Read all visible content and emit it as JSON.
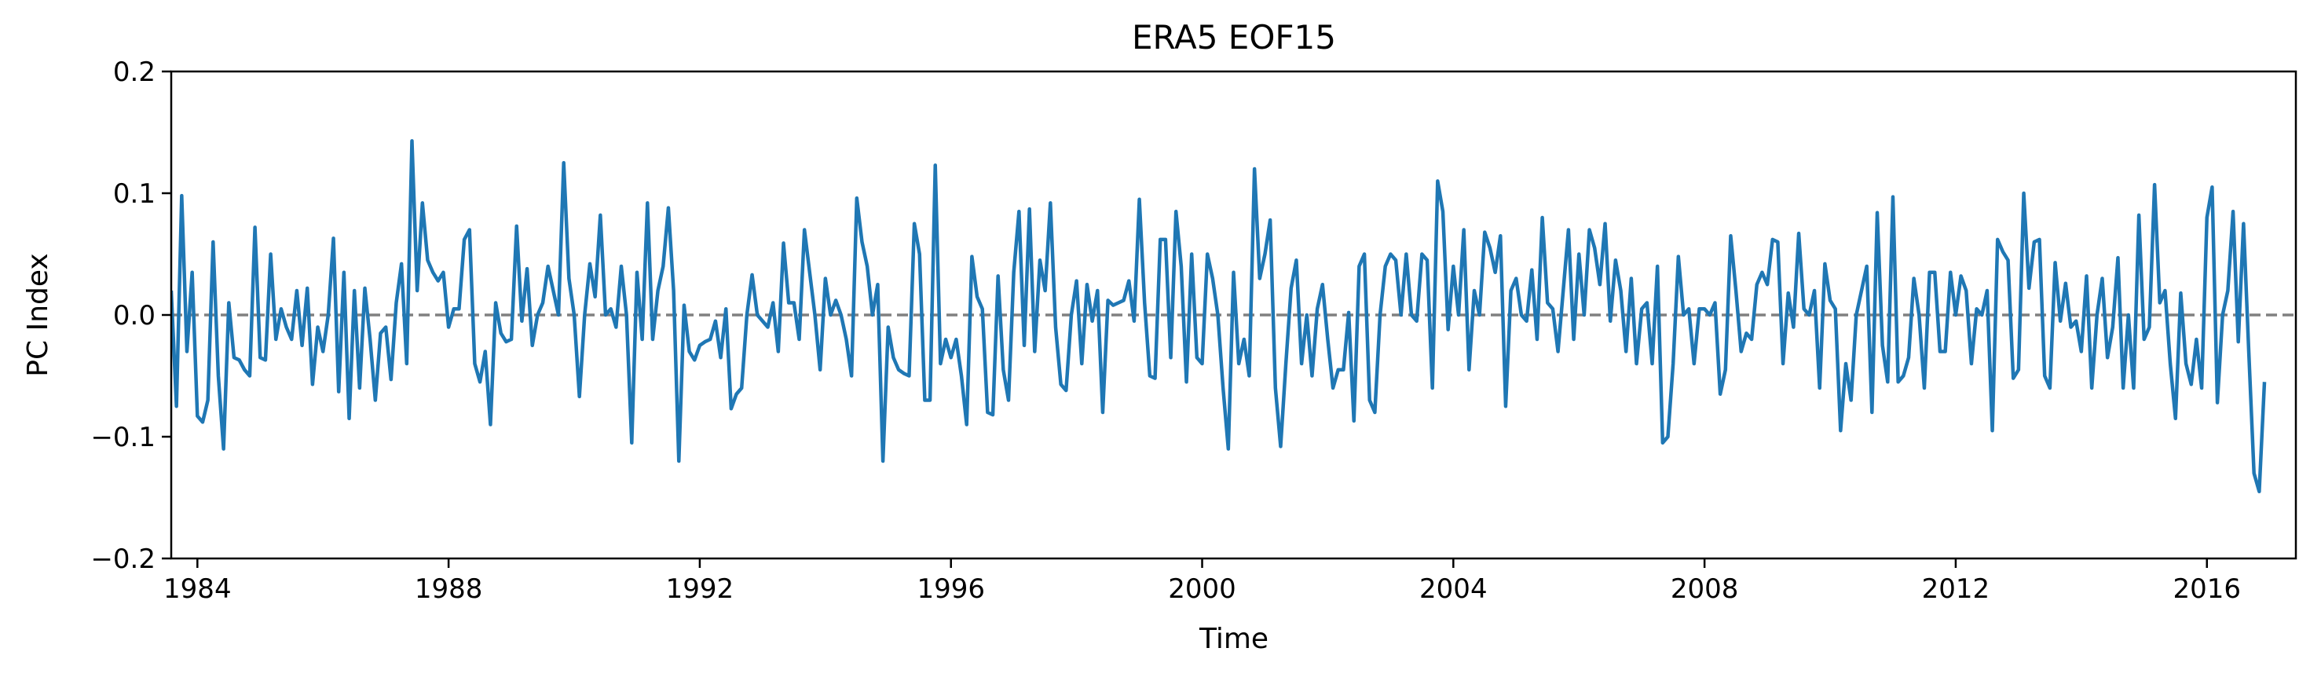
{
  "chart_data": {
    "type": "line",
    "title": "ERA5  EOF15",
    "xlabel": "Time",
    "ylabel": "PC Index",
    "xlim": [
      "1983-08",
      "2017-06"
    ],
    "ylim": [
      -0.2,
      0.2
    ],
    "x_ticks": [
      "1984",
      "1988",
      "1992",
      "1996",
      "2000",
      "2004",
      "2008",
      "2012",
      "2016"
    ],
    "y_ticks": [
      "0.2",
      "0.1",
      "0.0",
      "−0.1",
      "−0.2"
    ],
    "y_tick_values": [
      0.2,
      0.1,
      0.0,
      -0.1,
      -0.2
    ],
    "reference_line": {
      "y": 0.0,
      "style": "dashed",
      "color": "#808080"
    },
    "grid": false,
    "line_color": "#1f77b4",
    "series": [
      {
        "x_start": "1983-08",
        "frequency": "monthly",
        "values": [
          0.02,
          -0.075,
          0.098,
          -0.03,
          0.035,
          -0.083,
          -0.088,
          -0.07,
          0.06,
          -0.05,
          -0.11,
          0.01,
          -0.035,
          -0.037,
          -0.045,
          -0.05,
          0.072,
          -0.035,
          -0.037,
          0.05,
          -0.02,
          0.005,
          -0.01,
          -0.02,
          0.02,
          -0.025,
          0.022,
          -0.057,
          -0.01,
          -0.03,
          0.0,
          0.063,
          -0.063,
          0.035,
          -0.085,
          0.02,
          -0.06,
          0.022,
          -0.02,
          -0.07,
          -0.015,
          -0.01,
          -0.053,
          0.01,
          0.042,
          -0.04,
          0.143,
          0.02,
          0.092,
          0.045,
          0.035,
          0.028,
          0.035,
          -0.01,
          0.005,
          0.005,
          0.062,
          0.07,
          -0.04,
          -0.055,
          -0.03,
          -0.09,
          0.01,
          -0.015,
          -0.022,
          -0.02,
          0.073,
          -0.005,
          0.038,
          -0.025,
          0.0,
          0.01,
          0.04,
          0.02,
          0.0,
          0.125,
          0.03,
          0.0,
          -0.067,
          0.0,
          0.042,
          0.015,
          0.082,
          0.0,
          0.005,
          -0.01,
          0.04,
          0.0,
          -0.105,
          0.035,
          -0.02,
          0.092,
          -0.02,
          0.02,
          0.04,
          0.088,
          0.02,
          -0.12,
          0.008,
          -0.03,
          -0.037,
          -0.025,
          -0.022,
          -0.02,
          -0.005,
          -0.035,
          0.005,
          -0.077,
          -0.065,
          -0.06,
          0.0,
          0.033,
          0.0,
          -0.005,
          -0.01,
          0.01,
          -0.03,
          0.059,
          0.01,
          0.01,
          -0.02,
          0.07,
          0.035,
          0.0,
          -0.045,
          0.03,
          0.0,
          0.012,
          0.0,
          -0.02,
          -0.05,
          0.096,
          0.06,
          0.04,
          0.0,
          0.025,
          -0.12,
          -0.01,
          -0.035,
          -0.045,
          -0.048,
          -0.05,
          0.075,
          0.05,
          -0.07,
          -0.07,
          0.123,
          -0.04,
          -0.02,
          -0.035,
          -0.02,
          -0.05,
          -0.09,
          0.048,
          0.015,
          0.005,
          -0.08,
          -0.082,
          0.032,
          -0.045,
          -0.07,
          0.035,
          0.085,
          -0.025,
          0.087,
          -0.03,
          0.045,
          0.02,
          0.092,
          -0.01,
          -0.057,
          -0.062,
          0.0,
          0.028,
          -0.04,
          0.025,
          -0.005,
          0.02,
          -0.08,
          0.012,
          0.008,
          0.01,
          0.012,
          0.028,
          -0.005,
          0.095,
          0.01,
          -0.05,
          -0.052,
          0.062,
          0.062,
          -0.035,
          0.085,
          0.04,
          -0.055,
          0.05,
          -0.035,
          -0.04,
          0.05,
          0.03,
          0.0,
          -0.06,
          -0.11,
          0.035,
          -0.04,
          -0.02,
          -0.05,
          0.12,
          0.03,
          0.05,
          0.078,
          -0.06,
          -0.108,
          -0.04,
          0.022,
          0.045,
          -0.04,
          0.0,
          -0.05,
          0.005,
          0.025,
          -0.02,
          -0.06,
          -0.045,
          -0.045,
          0.002,
          -0.087,
          0.04,
          0.05,
          -0.07,
          -0.08,
          0.0,
          0.04,
          0.05,
          0.045,
          0.0,
          0.05,
          0.0,
          -0.005,
          0.05,
          0.045,
          -0.06,
          0.11,
          0.085,
          -0.012,
          0.04,
          0.0,
          0.07,
          -0.045,
          0.02,
          0.0,
          0.068,
          0.055,
          0.035,
          0.065,
          -0.075,
          0.02,
          0.03,
          0.0,
          -0.005,
          0.037,
          -0.02,
          0.08,
          0.01,
          0.005,
          -0.03,
          0.02,
          0.07,
          -0.02,
          0.05,
          0.0,
          0.07,
          0.055,
          0.025,
          0.075,
          -0.005,
          0.045,
          0.02,
          -0.03,
          0.03,
          -0.04,
          0.005,
          0.01,
          -0.04,
          0.04,
          -0.105,
          -0.1,
          -0.04,
          0.048,
          0.0,
          0.005,
          -0.04,
          0.005,
          0.005,
          0.0,
          0.01,
          -0.065,
          -0.045,
          0.065,
          0.02,
          -0.03,
          -0.015,
          -0.02,
          0.025,
          0.035,
          0.025,
          0.062,
          0.06,
          -0.04,
          0.018,
          -0.01,
          0.067,
          0.005,
          0.0,
          0.02,
          -0.06,
          0.042,
          0.012,
          0.005,
          -0.095,
          -0.04,
          -0.07,
          0.0,
          0.02,
          0.04,
          -0.08,
          0.084,
          -0.025,
          -0.055,
          0.097,
          -0.055,
          -0.05,
          -0.035,
          0.03,
          0.0,
          -0.06,
          0.035,
          0.035,
          -0.03,
          -0.03,
          0.035,
          0.0,
          0.032,
          0.02,
          -0.04,
          0.005,
          0.0,
          0.02,
          -0.095,
          0.062,
          0.052,
          0.045,
          -0.052,
          -0.045,
          0.1,
          0.022,
          0.06,
          0.062,
          -0.05,
          -0.06,
          0.043,
          -0.005,
          0.026,
          -0.01,
          -0.005,
          -0.03,
          0.032,
          -0.06,
          0.0,
          0.03,
          -0.035,
          -0.01,
          0.047,
          -0.06,
          0.0,
          -0.06,
          0.082,
          -0.02,
          -0.01,
          0.107,
          0.01,
          0.02,
          -0.04,
          -0.085,
          0.018,
          -0.04,
          -0.057,
          -0.02,
          -0.06,
          0.08,
          0.105,
          -0.072,
          0.0,
          0.02,
          0.085,
          -0.022,
          0.075,
          -0.03,
          -0.13,
          -0.145,
          -0.055
        ]
      }
    ]
  }
}
